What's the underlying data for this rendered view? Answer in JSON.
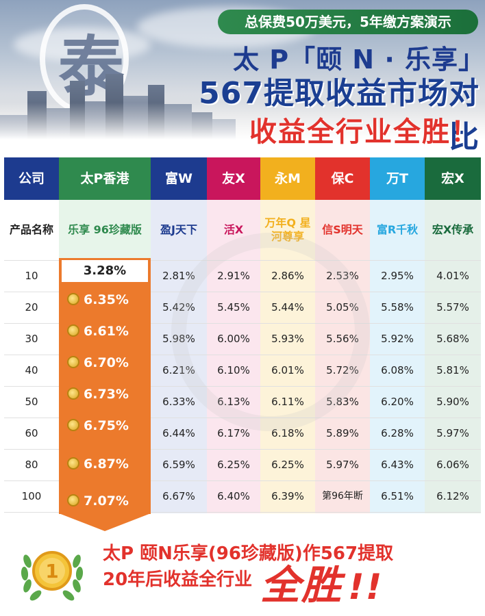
{
  "banner": {
    "logo_char": "泰",
    "subtitle": "总保费50万美元，5年缴方案演示",
    "title_line1": "太 P「颐 N · 乐享」",
    "title_line2": "567提取收益市场对比",
    "title_line3": "收益全行业全胜！"
  },
  "table": {
    "corner_header": "公司",
    "product_row_label": "产品名称",
    "columns": [
      {
        "company": "太P香港",
        "product": "乐享 96珍藏版",
        "header_color": "#2f8a4e",
        "tint": "#e7f5ea"
      },
      {
        "company": "富W",
        "product": "盈J天下",
        "header_color": "#1d3b8f",
        "tint": "#e6eaf6"
      },
      {
        "company": "友X",
        "product": "活X",
        "header_color": "#c9165c",
        "tint": "#fbe6ee"
      },
      {
        "company": "永M",
        "product": "万年Q 星河尊享",
        "header_color": "#f2b01e",
        "tint": "#fdf3d9"
      },
      {
        "company": "保C",
        "product": "信S明天",
        "header_color": "#e2322c",
        "tint": "#fbe5e4"
      },
      {
        "company": "万T",
        "product": "富R千秋",
        "header_color": "#27a7df",
        "tint": "#e2f3fb"
      },
      {
        "company": "宏X",
        "product": "宏X传承",
        "header_color": "#1a6b3d",
        "tint": "#e5f0e9"
      }
    ],
    "years": [
      "10",
      "20",
      "30",
      "40",
      "50",
      "60",
      "80",
      "100"
    ],
    "rows": [
      [
        "3.28%",
        "2.81%",
        "2.91%",
        "2.86%",
        "2.53%",
        "2.95%",
        "4.01%"
      ],
      [
        "6.35%",
        "5.42%",
        "5.45%",
        "5.44%",
        "5.05%",
        "5.58%",
        "5.57%"
      ],
      [
        "6.61%",
        "5.98%",
        "6.00%",
        "5.93%",
        "5.56%",
        "5.92%",
        "5.68%"
      ],
      [
        "6.70%",
        "6.21%",
        "6.10%",
        "6.01%",
        "5.72%",
        "6.08%",
        "5.81%"
      ],
      [
        "6.73%",
        "6.33%",
        "6.13%",
        "6.11%",
        "5.83%",
        "6.20%",
        "5.90%"
      ],
      [
        "6.75%",
        "6.44%",
        "6.17%",
        "6.18%",
        "5.89%",
        "6.28%",
        "5.97%"
      ],
      [
        "6.87%",
        "6.59%",
        "6.25%",
        "6.25%",
        "5.97%",
        "6.43%",
        "6.06%"
      ],
      [
        "7.07%",
        "6.67%",
        "6.40%",
        "6.39%",
        "第96年断",
        "6.51%",
        "6.12%"
      ]
    ]
  },
  "footer": {
    "medal_number": "1",
    "line1": "太P 颐N乐享(96珍藏版)作567提取",
    "line2": "20年后收益全行业",
    "line3": "全胜",
    "exclaim": "!!"
  }
}
